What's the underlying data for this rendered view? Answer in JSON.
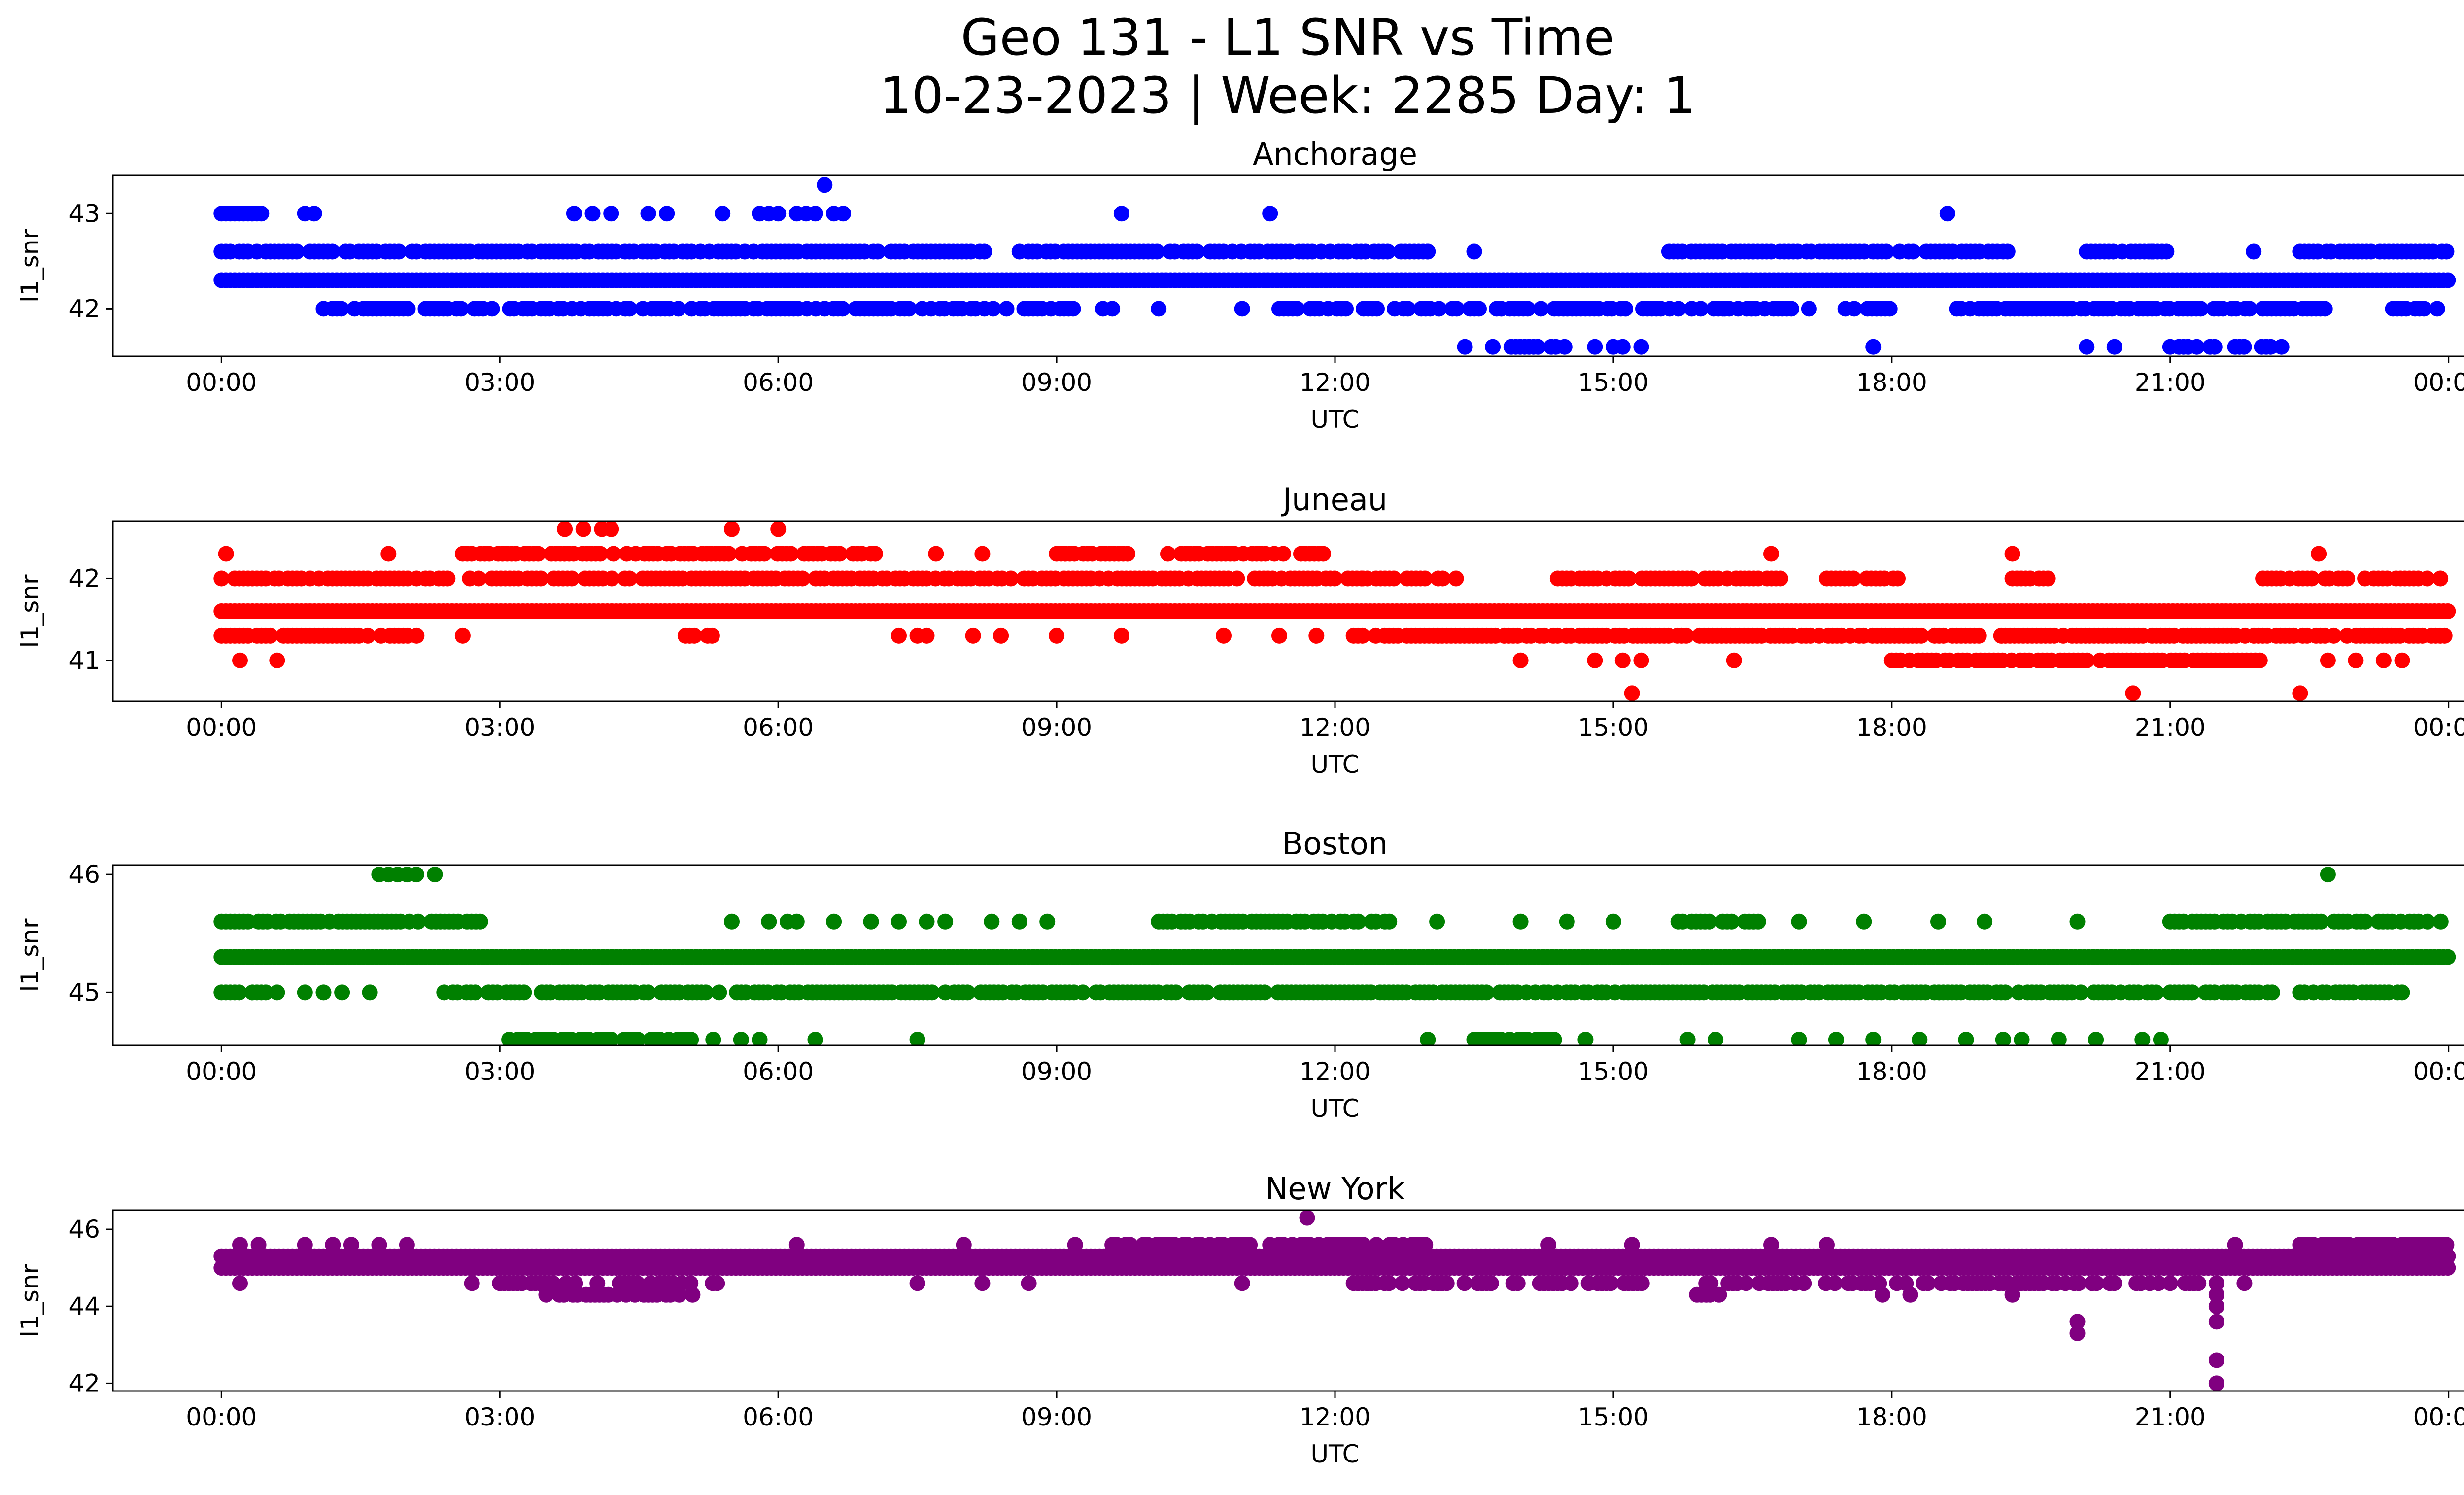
{
  "title": {
    "line1": "Geo 131 - L1 SNR vs Time",
    "line2": "10-23-2023 | Week: 2285 Day: 1"
  },
  "x_tick_labels": [
    "00:00",
    "03:00",
    "06:00",
    "09:00",
    "12:00",
    "15:00",
    "18:00",
    "21:00",
    "00:00"
  ],
  "chart_data": [
    {
      "type": "scatter",
      "title": "Anchorage",
      "xlabel": "UTC",
      "ylabel": "l1_snr",
      "color": "#0000ff",
      "xlim_hours": [
        -1.17,
        25.17
      ],
      "ylim": [
        41.5,
        43.4
      ],
      "yticks": [
        42,
        43
      ],
      "bands": [
        {
          "y": 42.3,
          "segments": [
            [
              0.0,
              24.0
            ]
          ],
          "density": 1.0
        },
        {
          "y": 42.6,
          "segments": [
            [
              0.0,
              8.3
            ],
            [
              8.6,
              13.0
            ],
            [
              15.6,
              19.2
            ],
            [
              19.2,
              19.3
            ],
            [
              20.1,
              21.0
            ],
            [
              22.4,
              24.0
            ]
          ],
          "density": 0.8
        },
        {
          "y": 42.0,
          "segments": [
            [
              1.1,
              9.2
            ],
            [
              11.4,
              16.2
            ],
            [
              16.2,
              17.3
            ],
            [
              17.5,
              18.0
            ],
            [
              18.7,
              22.8
            ],
            [
              23.4,
              23.9
            ]
          ],
          "density": 0.7
        },
        {
          "y": 43.0,
          "segments": [
            [
              0.0,
              0.5
            ]
          ],
          "density": 0.9
        },
        {
          "y": 41.6,
          "segments": [
            [
              13.9,
              14.5
            ],
            [
              21.0,
              21.5
            ],
            [
              21.7,
              22.1
            ]
          ],
          "density": 0.6
        }
      ],
      "points": [
        {
          "x": 6.5,
          "y": 43.3
        },
        {
          "x": 0.9,
          "y": 43.0
        },
        {
          "x": 1.0,
          "y": 43.0
        },
        {
          "x": 3.8,
          "y": 43.0
        },
        {
          "x": 4.0,
          "y": 43.0
        },
        {
          "x": 4.2,
          "y": 43.0
        },
        {
          "x": 4.6,
          "y": 43.0
        },
        {
          "x": 4.8,
          "y": 43.0
        },
        {
          "x": 5.4,
          "y": 43.0
        },
        {
          "x": 5.8,
          "y": 43.0
        },
        {
          "x": 5.9,
          "y": 43.0
        },
        {
          "x": 6.0,
          "y": 43.0
        },
        {
          "x": 6.2,
          "y": 43.0
        },
        {
          "x": 6.3,
          "y": 43.0
        },
        {
          "x": 6.4,
          "y": 43.0
        },
        {
          "x": 6.6,
          "y": 43.0
        },
        {
          "x": 6.7,
          "y": 43.0
        },
        {
          "x": 9.7,
          "y": 43.0
        },
        {
          "x": 11.3,
          "y": 43.0
        },
        {
          "x": 18.6,
          "y": 43.0
        },
        {
          "x": 13.0,
          "y": 42.6
        },
        {
          "x": 13.5,
          "y": 42.6
        },
        {
          "x": 20.8,
          "y": 42.6
        },
        {
          "x": 21.9,
          "y": 42.6
        },
        {
          "x": 9.5,
          "y": 42.0
        },
        {
          "x": 9.6,
          "y": 42.0
        },
        {
          "x": 10.1,
          "y": 42.0
        },
        {
          "x": 11.0,
          "y": 42.0
        },
        {
          "x": 13.4,
          "y": 41.6
        },
        {
          "x": 13.7,
          "y": 41.6
        },
        {
          "x": 14.8,
          "y": 41.6
        },
        {
          "x": 15.0,
          "y": 41.6
        },
        {
          "x": 15.1,
          "y": 41.6
        },
        {
          "x": 15.3,
          "y": 41.6
        },
        {
          "x": 17.8,
          "y": 41.6
        },
        {
          "x": 20.1,
          "y": 41.6
        },
        {
          "x": 20.4,
          "y": 41.6
        },
        {
          "x": 22.2,
          "y": 41.6
        }
      ]
    },
    {
      "type": "scatter",
      "title": "Juneau",
      "xlabel": "UTC",
      "ylabel": "l1_snr",
      "color": "#ff0000",
      "xlim_hours": [
        -1.17,
        25.17
      ],
      "ylim": [
        40.5,
        42.7
      ],
      "yticks": [
        41,
        42
      ],
      "bands": [
        {
          "y": 41.6,
          "segments": [
            [
              0.0,
              24.0
            ]
          ],
          "density": 1.0
        },
        {
          "y": 42.0,
          "segments": [
            [
              0.0,
              12.3
            ],
            [
              12.3,
              13.4
            ],
            [
              14.4,
              15.7
            ],
            [
              15.7,
              16.8
            ],
            [
              17.3,
              18.1
            ],
            [
              19.3,
              19.8
            ],
            [
              22.0,
              24.0
            ]
          ],
          "density": 0.75
        },
        {
          "y": 41.3,
          "segments": [
            [
              0.0,
              2.2
            ],
            [
              5.0,
              5.3
            ],
            [
              12.2,
              24.0
            ]
          ],
          "density": 0.8
        },
        {
          "y": 42.3,
          "segments": [
            [
              2.6,
              7.1
            ],
            [
              9.0,
              9.8
            ],
            [
              10.2,
              11.9
            ]
          ],
          "density": 0.75
        },
        {
          "y": 41.0,
          "segments": [
            [
              18.0,
              22.0
            ]
          ],
          "density": 0.75
        }
      ],
      "points": [
        {
          "x": 0.05,
          "y": 42.3
        },
        {
          "x": 1.8,
          "y": 42.3
        },
        {
          "x": 16.7,
          "y": 42.3
        },
        {
          "x": 19.3,
          "y": 42.3
        },
        {
          "x": 22.6,
          "y": 42.3
        },
        {
          "x": 3.7,
          "y": 42.6
        },
        {
          "x": 3.9,
          "y": 42.6
        },
        {
          "x": 4.1,
          "y": 42.6
        },
        {
          "x": 4.2,
          "y": 42.6
        },
        {
          "x": 5.5,
          "y": 42.6
        },
        {
          "x": 6.0,
          "y": 42.6
        },
        {
          "x": 0.2,
          "y": 41.0
        },
        {
          "x": 0.6,
          "y": 41.0
        },
        {
          "x": 14.0,
          "y": 41.0
        },
        {
          "x": 14.8,
          "y": 41.0
        },
        {
          "x": 15.1,
          "y": 41.0
        },
        {
          "x": 15.3,
          "y": 41.0
        },
        {
          "x": 16.3,
          "y": 41.0
        },
        {
          "x": 22.7,
          "y": 41.0
        },
        {
          "x": 23.0,
          "y": 41.0
        },
        {
          "x": 23.3,
          "y": 41.0
        },
        {
          "x": 23.5,
          "y": 41.0
        },
        {
          "x": 15.2,
          "y": 40.6
        },
        {
          "x": 20.6,
          "y": 40.6
        },
        {
          "x": 22.4,
          "y": 40.6
        },
        {
          "x": 2.6,
          "y": 41.3
        },
        {
          "x": 7.3,
          "y": 41.3
        },
        {
          "x": 7.5,
          "y": 41.3
        },
        {
          "x": 7.6,
          "y": 41.3
        },
        {
          "x": 8.1,
          "y": 41.3
        },
        {
          "x": 8.4,
          "y": 41.3
        },
        {
          "x": 9.0,
          "y": 41.3
        },
        {
          "x": 9.7,
          "y": 41.3
        },
        {
          "x": 10.8,
          "y": 41.3
        },
        {
          "x": 11.4,
          "y": 41.3
        },
        {
          "x": 11.8,
          "y": 41.3
        },
        {
          "x": 7.7,
          "y": 42.3
        },
        {
          "x": 8.2,
          "y": 42.3
        }
      ]
    },
    {
      "type": "scatter",
      "title": "Boston",
      "xlabel": "UTC",
      "ylabel": "l1_snr",
      "color": "#008000",
      "xlim_hours": [
        -1.17,
        25.17
      ],
      "ylim": [
        44.55,
        46.08
      ],
      "yticks": [
        45,
        46
      ],
      "bands": [
        {
          "y": 45.3,
          "segments": [
            [
              0.0,
              24.0
            ]
          ],
          "density": 1.0
        },
        {
          "y": 45.0,
          "segments": [
            [
              0.0,
              0.5
            ],
            [
              2.4,
              21.0
            ],
            [
              21.0,
              22.1
            ],
            [
              22.4,
              23.5
            ]
          ],
          "density": 0.8
        },
        {
          "y": 45.6,
          "segments": [
            [
              0.0,
              0.3
            ],
            [
              0.4,
              2.9
            ],
            [
              10.1,
              12.6
            ],
            [
              15.7,
              16.6
            ],
            [
              21.0,
              24.0
            ]
          ],
          "density": 0.8
        },
        {
          "y": 44.6,
          "segments": [
            [
              3.1,
              5.1
            ],
            [
              13.5,
              14.4
            ]
          ],
          "density": 0.85
        }
      ],
      "points": [
        {
          "x": 1.7,
          "y": 46.0
        },
        {
          "x": 1.8,
          "y": 46.0
        },
        {
          "x": 1.9,
          "y": 46.0
        },
        {
          "x": 2.0,
          "y": 46.0
        },
        {
          "x": 2.1,
          "y": 46.0
        },
        {
          "x": 2.3,
          "y": 46.0
        },
        {
          "x": 22.7,
          "y": 46.0
        },
        {
          "x": 0.6,
          "y": 45.0
        },
        {
          "x": 0.9,
          "y": 45.0
        },
        {
          "x": 1.1,
          "y": 45.0
        },
        {
          "x": 1.3,
          "y": 45.0
        },
        {
          "x": 1.6,
          "y": 45.0
        },
        {
          "x": 5.5,
          "y": 45.6
        },
        {
          "x": 5.9,
          "y": 45.6
        },
        {
          "x": 6.1,
          "y": 45.6
        },
        {
          "x": 6.2,
          "y": 45.6
        },
        {
          "x": 6.6,
          "y": 45.6
        },
        {
          "x": 7.0,
          "y": 45.6
        },
        {
          "x": 7.3,
          "y": 45.6
        },
        {
          "x": 7.6,
          "y": 45.6
        },
        {
          "x": 7.8,
          "y": 45.6
        },
        {
          "x": 8.3,
          "y": 45.6
        },
        {
          "x": 8.6,
          "y": 45.6
        },
        {
          "x": 8.9,
          "y": 45.6
        },
        {
          "x": 13.1,
          "y": 45.6
        },
        {
          "x": 14.0,
          "y": 45.6
        },
        {
          "x": 14.5,
          "y": 45.6
        },
        {
          "x": 15.0,
          "y": 45.6
        },
        {
          "x": 17.0,
          "y": 45.6
        },
        {
          "x": 17.7,
          "y": 45.6
        },
        {
          "x": 18.5,
          "y": 45.6
        },
        {
          "x": 19.0,
          "y": 45.6
        },
        {
          "x": 20.0,
          "y": 45.6
        },
        {
          "x": 5.3,
          "y": 44.6
        },
        {
          "x": 5.6,
          "y": 44.6
        },
        {
          "x": 5.8,
          "y": 44.6
        },
        {
          "x": 6.4,
          "y": 44.6
        },
        {
          "x": 7.5,
          "y": 44.6
        },
        {
          "x": 13.0,
          "y": 44.6
        },
        {
          "x": 14.7,
          "y": 44.6
        },
        {
          "x": 15.8,
          "y": 44.6
        },
        {
          "x": 16.1,
          "y": 44.6
        },
        {
          "x": 17.0,
          "y": 44.6
        },
        {
          "x": 17.4,
          "y": 44.6
        },
        {
          "x": 17.8,
          "y": 44.6
        },
        {
          "x": 18.3,
          "y": 44.6
        },
        {
          "x": 18.8,
          "y": 44.6
        },
        {
          "x": 19.2,
          "y": 44.6
        },
        {
          "x": 19.4,
          "y": 44.6
        },
        {
          "x": 19.8,
          "y": 44.6
        },
        {
          "x": 20.2,
          "y": 44.6
        },
        {
          "x": 20.7,
          "y": 44.6
        },
        {
          "x": 20.9,
          "y": 44.6
        }
      ]
    },
    {
      "type": "scatter",
      "title": "New York",
      "xlabel": "UTC",
      "ylabel": "l1_snr",
      "color": "#800080",
      "xlim_hours": [
        -1.17,
        25.17
      ],
      "ylim": [
        41.8,
        46.5
      ],
      "yticks": [
        42,
        44,
        46
      ],
      "bands": [
        {
          "y": 45.3,
          "segments": [
            [
              0.0,
              24.0
            ]
          ],
          "density": 1.0
        },
        {
          "y": 45.0,
          "segments": [
            [
              0.0,
              24.0
            ]
          ],
          "density": 1.0
        },
        {
          "y": 44.6,
          "segments": [
            [
              3.0,
              5.4
            ],
            [
              12.2,
              15.4
            ],
            [
              16.0,
              21.4
            ]
          ],
          "density": 0.6
        },
        {
          "y": 45.6,
          "segments": [
            [
              9.6,
              11.1
            ],
            [
              11.3,
              13.0
            ],
            [
              22.4,
              24.0
            ]
          ],
          "density": 0.8
        },
        {
          "y": 44.3,
          "segments": [
            [
              3.5,
              5.1
            ],
            [
              15.9,
              16.2
            ]
          ],
          "density": 0.45
        }
      ],
      "points": [
        {
          "x": 11.7,
          "y": 46.3
        },
        {
          "x": 0.2,
          "y": 45.6
        },
        {
          "x": 0.4,
          "y": 45.6
        },
        {
          "x": 0.9,
          "y": 45.6
        },
        {
          "x": 1.2,
          "y": 45.6
        },
        {
          "x": 1.4,
          "y": 45.6
        },
        {
          "x": 1.7,
          "y": 45.6
        },
        {
          "x": 2.0,
          "y": 45.6
        },
        {
          "x": 6.2,
          "y": 45.6
        },
        {
          "x": 8.0,
          "y": 45.6
        },
        {
          "x": 9.2,
          "y": 45.6
        },
        {
          "x": 14.3,
          "y": 45.6
        },
        {
          "x": 15.2,
          "y": 45.6
        },
        {
          "x": 16.7,
          "y": 45.6
        },
        {
          "x": 17.3,
          "y": 45.6
        },
        {
          "x": 21.7,
          "y": 45.6
        },
        {
          "x": 0.2,
          "y": 44.6
        },
        {
          "x": 2.7,
          "y": 44.6
        },
        {
          "x": 7.5,
          "y": 44.6
        },
        {
          "x": 8.2,
          "y": 44.6
        },
        {
          "x": 8.7,
          "y": 44.6
        },
        {
          "x": 11.0,
          "y": 44.6
        },
        {
          "x": 21.0,
          "y": 44.6
        },
        {
          "x": 21.8,
          "y": 44.6
        },
        {
          "x": 16.0,
          "y": 44.3
        },
        {
          "x": 17.9,
          "y": 44.3
        },
        {
          "x": 18.2,
          "y": 44.3
        },
        {
          "x": 19.3,
          "y": 44.3
        },
        {
          "x": 20.0,
          "y": 43.6
        },
        {
          "x": 20.0,
          "y": 43.3
        },
        {
          "x": 21.5,
          "y": 44.6
        },
        {
          "x": 21.5,
          "y": 44.3
        },
        {
          "x": 21.5,
          "y": 44.0
        },
        {
          "x": 21.5,
          "y": 43.6
        },
        {
          "x": 21.5,
          "y": 42.6
        },
        {
          "x": 21.5,
          "y": 42.0
        },
        {
          "x": 23.8,
          "y": 45.0
        }
      ]
    }
  ]
}
